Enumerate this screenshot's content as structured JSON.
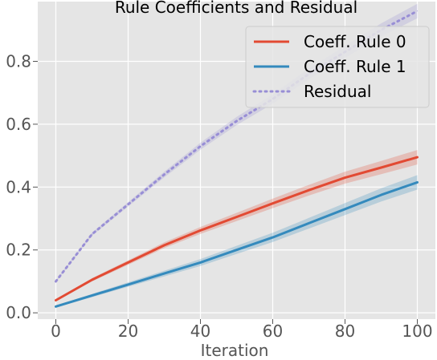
{
  "chart_data": {
    "type": "line",
    "title": "Rule Coefficients and Residual",
    "xlabel": "Iteration",
    "ylabel": "",
    "xlim": [
      -5,
      105
    ],
    "ylim": [
      -0.02,
      0.99
    ],
    "xticks": [
      0,
      20,
      40,
      60,
      80,
      100
    ],
    "yticks": [
      0.0,
      0.2,
      0.4,
      0.6,
      0.8
    ],
    "xtick_labels": [
      "0",
      "20",
      "40",
      "60",
      "80",
      "100"
    ],
    "ytick_labels": [
      "0.0",
      "0.2",
      "0.4",
      "0.6",
      "0.8"
    ],
    "grid": true,
    "legend": "top-right",
    "series": [
      {
        "name": "Coeff. Rule 0",
        "color": "#e24a33",
        "style": "solid",
        "band": true,
        "x": [
          0,
          10,
          20,
          30,
          40,
          50,
          60,
          70,
          80,
          90,
          100
        ],
        "values": [
          0.04,
          0.105,
          0.16,
          0.215,
          0.262,
          0.305,
          0.348,
          0.39,
          0.43,
          0.462,
          0.495
        ]
      },
      {
        "name": "Coeff. Rule 1",
        "color": "#348abd",
        "style": "solid",
        "band": true,
        "x": [
          0,
          10,
          20,
          30,
          40,
          50,
          60,
          70,
          80,
          90,
          100
        ],
        "values": [
          0.02,
          0.055,
          0.09,
          0.125,
          0.16,
          0.2,
          0.24,
          0.285,
          0.33,
          0.375,
          0.415
        ]
      },
      {
        "name": "Residual",
        "color": "#988ed5",
        "style": "dotted",
        "band": true,
        "x": [
          0,
          10,
          20,
          30,
          40,
          50,
          60,
          70,
          80,
          90,
          100
        ],
        "values": [
          0.1,
          0.25,
          0.345,
          0.44,
          0.53,
          0.61,
          0.68,
          0.76,
          0.83,
          0.9,
          0.96
        ]
      }
    ]
  }
}
